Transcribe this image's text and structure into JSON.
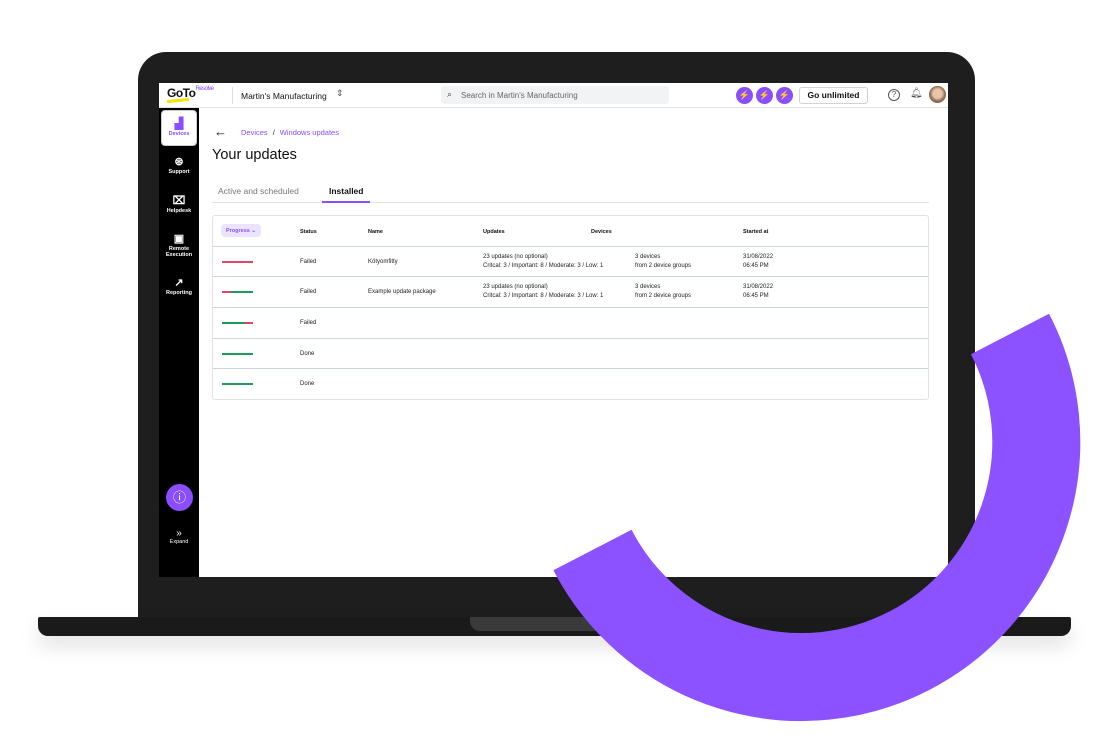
{
  "topbar": {
    "logo": "GoTo",
    "logo_sub": "Resolve",
    "org": "Martin's Manufacturing",
    "search_placeholder": "Search in Martin's Manufacturing",
    "go_unlimited": "Go unlimited"
  },
  "sidebar": {
    "items": [
      {
        "label": "Devices",
        "icon": "devices-icon"
      },
      {
        "label": "Support",
        "icon": "support-icon"
      },
      {
        "label": "Helpdesk",
        "icon": "ticket-icon"
      },
      {
        "label": "Remote Execution",
        "icon": "monitor-icon"
      },
      {
        "label": "Reporting",
        "icon": "chart-line-icon"
      }
    ],
    "expand": "Expand"
  },
  "breadcrumb": {
    "items": [
      "Devices",
      "Windows updates"
    ]
  },
  "page": {
    "title": "Your updates"
  },
  "tabs": [
    {
      "label": "Active and scheduled",
      "selected": false
    },
    {
      "label": "Installed",
      "selected": true
    }
  ],
  "table": {
    "headers": {
      "progress": "Progress",
      "status": "Status",
      "name": "Name",
      "updates": "Updates",
      "devices": "Devices",
      "started": "Started at"
    },
    "rows": [
      {
        "failed_fraction": 1.0,
        "status": "Failed",
        "name": "Kötyomfitty",
        "updates1": "23 updates (no optional)",
        "updates2": "Critcal: 3 / Important: 8 / Moderate: 3 / Low: 1",
        "devices1": "3 devices",
        "devices2": "from 2 device groups",
        "date": "31/08/2022",
        "time": "06:45 PM"
      },
      {
        "failed_fraction": 0.3,
        "status": "Failed",
        "name": "Example update package",
        "updates1": "23 updates (no optional)",
        "updates2": "Critcal: 3 / Important: 8 / Moderate: 3 / Low: 1",
        "devices1": "3 devices",
        "devices2": "from 2 device groups",
        "date": "31/08/2022",
        "time": "06:45 PM"
      },
      {
        "failed_fraction": -0.25,
        "status": "Failed"
      },
      {
        "failed_fraction": 0,
        "status": "Done"
      },
      {
        "failed_fraction": 0,
        "status": "Done"
      }
    ]
  },
  "colors": {
    "accent": "#8a4dff",
    "failed": "#e0486a",
    "done": "#1e9a5a"
  }
}
